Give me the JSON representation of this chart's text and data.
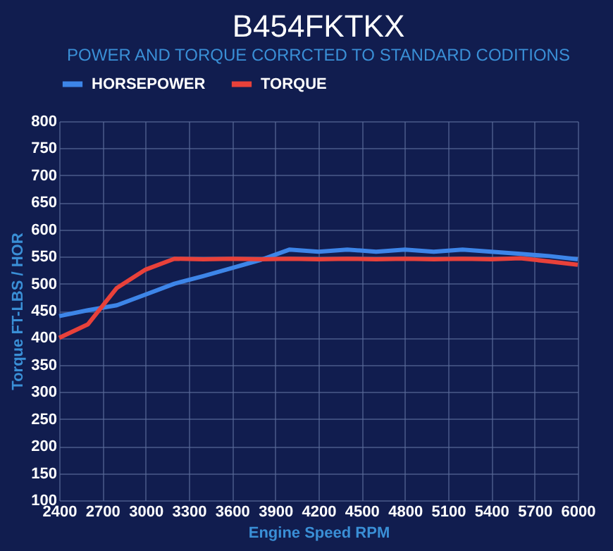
{
  "chart_data": {
    "type": "line",
    "title": "B454FKTKX",
    "subtitle": "POWER AND TORQUE CORRCTED TO STANDARD CODITIONS",
    "xlabel": "Engine Speed RPM",
    "ylabel": "Torque FT-LBS / HOR",
    "x": [
      2400,
      2600,
      2800,
      3000,
      3200,
      3400,
      3600,
      3800,
      4000,
      4200,
      4400,
      4600,
      4800,
      5000,
      5200,
      5400,
      5600,
      5800,
      6000
    ],
    "series": [
      {
        "name": "HORSEPOWER",
        "color": "#3d85e8",
        "values": [
          440,
          451,
          460,
          480,
          500,
          514,
          529,
          544,
          563,
          559,
          563,
          559,
          563,
          559,
          563,
          559,
          555,
          551,
          545
        ]
      },
      {
        "name": "TORQUE",
        "color": "#e8413a",
        "values": [
          400,
          425,
          492,
          526,
          546,
          545,
          546,
          545,
          546,
          545,
          546,
          545,
          546,
          545,
          546,
          545,
          547,
          541,
          535
        ]
      }
    ],
    "xlim": [
      2400,
      6000
    ],
    "xticks": [
      2400,
      2700,
      3000,
      3300,
      3600,
      3900,
      4200,
      4500,
      4800,
      5100,
      5400,
      5700,
      6000
    ],
    "ylim": [
      100,
      800
    ],
    "yticks": [
      100,
      150,
      200,
      250,
      300,
      350,
      400,
      450,
      500,
      550,
      600,
      650,
      700,
      750,
      800
    ],
    "grid": true,
    "legend": "top",
    "marker": "none",
    "line_style": "solid"
  }
}
